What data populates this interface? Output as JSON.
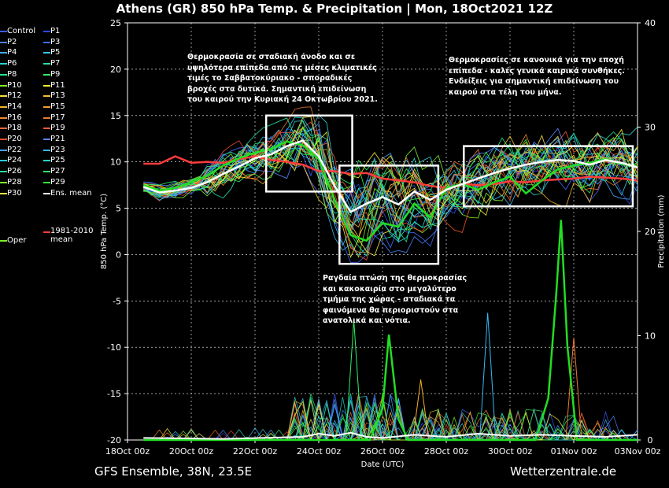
{
  "colors": {
    "background": "#000000",
    "foreground": "#ffffff",
    "grid": "#ffffff"
  },
  "title": "Athens  (GR)  850 hPa Temp. & Precipitation | Mon, 18Oct2021 12Z",
  "footer_left": "GFS Ensemble, 38N, 23.5E",
  "footer_right": "Wetterzentrale.de",
  "legend": [
    {
      "label": "Control",
      "color": "#3d5cff"
    },
    {
      "label": "P1",
      "color": "#2d48e8"
    },
    {
      "label": "P2",
      "color": "#4b82ff"
    },
    {
      "label": "P3",
      "color": "#3f6cff"
    },
    {
      "label": "P4",
      "color": "#43a9ff"
    },
    {
      "label": "P5",
      "color": "#32c6e6"
    },
    {
      "label": "P6",
      "color": "#2bd3d3"
    },
    {
      "label": "P7",
      "color": "#22e0b0"
    },
    {
      "label": "P8",
      "color": "#1ee890"
    },
    {
      "label": "P9",
      "color": "#2ef060"
    },
    {
      "label": "P10",
      "color": "#7cf020"
    },
    {
      "label": "P11",
      "color": "#f3f02c"
    },
    {
      "label": "P12",
      "color": "#f7dc3c"
    },
    {
      "label": "P13",
      "color": "#f4c22c"
    },
    {
      "label": "P14",
      "color": "#f6b027"
    },
    {
      "label": "P15",
      "color": "#f3a02a"
    },
    {
      "label": "P16",
      "color": "#f08a2e"
    },
    {
      "label": "P17",
      "color": "#ef7a30"
    },
    {
      "label": "P18",
      "color": "#f06a30"
    },
    {
      "label": "P19",
      "color": "#f05a30"
    },
    {
      "label": "P20",
      "color": "#f04a34"
    },
    {
      "label": "P21",
      "color": "#5a82ff"
    },
    {
      "label": "P22",
      "color": "#4aa0ff"
    },
    {
      "label": "P23",
      "color": "#36b8f4"
    },
    {
      "label": "P24",
      "color": "#2ccce0"
    },
    {
      "label": "P25",
      "color": "#22d8c4"
    },
    {
      "label": "P26",
      "color": "#22e0a0"
    },
    {
      "label": "P27",
      "color": "#34e870"
    },
    {
      "label": "P28",
      "color": "#7cf02c"
    },
    {
      "label": "P29",
      "color": "#2ef03a"
    },
    {
      "label": "P30",
      "color": "#f4f040"
    },
    {
      "label": "Ens. mean",
      "color": "#ffffff"
    },
    {
      "label": "Oper",
      "color": "#7cf020"
    },
    {
      "label": "1981-2010\nmean",
      "color": "#ff3b3b"
    }
  ],
  "annotations": [
    {
      "text": "Θερμοκρασία σε σταδιακή άνοδο και σε\nυψηλότερα επίπεδα από τις μέσες κλιματικές\nτιμές το Σαββατοκύριακο - σποραδικές\nβροχές στα δυτικά. Σημαντική επιδείνωση\nτου καιρού την Κυριακή 24 Οκτωβρίου 2021."
    },
    {
      "text": "Θερμοκρασίες σε κανονικά για την εποχή\nεπίπεδα - καλές γενικά καιρικά συνθήκες.\nΕνδείξεις για σημαντική επιδείνωση του\nκαιρού στα τέλη του μήνα."
    },
    {
      "text": "Ραγδαία πτώση της θερμοκρασίας\nκαι κακοκαιρία στο μεγαλύτερο\nτμήμα της χώρας - σταδιακά τα\nφαινόμενα θα περιοριστούν στα\nανατολικά και νότια."
    }
  ],
  "chart_data": {
    "type": "line",
    "x_tick_labels": [
      "18Oct 00z",
      "20Oct 00z",
      "22Oct 00z",
      "24Oct 00z",
      "26Oct 00z",
      "28Oct 00z",
      "30Oct 00z",
      "01Nov 00z",
      "03Nov 00z"
    ],
    "y_ticks_left": [
      "25",
      "20",
      "15",
      "10",
      "5",
      "0",
      "-5",
      "-10",
      "-15",
      "-20"
    ],
    "y_ticks_right": [
      "40",
      "30",
      "20",
      "10",
      "0"
    ],
    "xlabel": "Date (UTC)",
    "ylabel": "850 hPa Temp. (°C)",
    "y2label": "Precipitation (mm)",
    "ylim": [
      -20,
      25
    ],
    "y2lim": [
      0,
      40
    ],
    "x_unit": "days since 18Oct 00z",
    "xlim": [
      0,
      16
    ],
    "series_key": [
      {
        "name": "Ens. mean",
        "x": [
          0.5,
          1,
          1.5,
          2,
          2.5,
          3,
          3.5,
          4,
          4.5,
          5,
          5.5,
          6,
          6.5,
          7,
          7.5,
          8,
          8.5,
          9,
          9.5,
          10,
          10.5,
          11,
          11.5,
          12,
          12.5,
          13,
          13.5,
          14,
          14.5,
          15,
          15.5,
          16
        ],
        "y": [
          7.3,
          6.7,
          6.9,
          7.2,
          7.8,
          8.7,
          9.5,
          10.4,
          10.8,
          11.7,
          12.3,
          10.6,
          7.4,
          4.6,
          5.5,
          6.2,
          5.4,
          6.8,
          5.9,
          7.0,
          7.6,
          8.2,
          8.8,
          9.3,
          9.7,
          10.0,
          10.2,
          10.1,
          9.7,
          10.2,
          9.9,
          9.4
        ]
      },
      {
        "name": "1981-2010 mean",
        "x": [
          0.5,
          1,
          1.5,
          2,
          2.5,
          3,
          3.5,
          4,
          4.5,
          5,
          5.5,
          6,
          6.5,
          7,
          7.5,
          8,
          8.5,
          9,
          9.5,
          10,
          10.5,
          11,
          11.5,
          12,
          12.5,
          13,
          13.5,
          14,
          14.5,
          15,
          15.5,
          16
        ],
        "y": [
          9.8,
          9.8,
          10.6,
          9.9,
          10.0,
          9.9,
          10.3,
          10.6,
          10.2,
          10.0,
          9.7,
          9.0,
          9.0,
          8.7,
          8.8,
          8.2,
          8.0,
          7.8,
          7.4,
          7.2,
          7.6,
          7.5,
          7.6,
          7.9,
          7.8,
          8.0,
          8.1,
          8.2,
          8.4,
          8.3,
          8.2,
          8.0
        ]
      },
      {
        "name": "Oper",
        "x": [
          0.5,
          1,
          1.5,
          2,
          2.5,
          3,
          3.5,
          4,
          4.5,
          5,
          5.5,
          6,
          6.5,
          7,
          7.5,
          8,
          8.5,
          9,
          9.5,
          10,
          10.5,
          11,
          11.5,
          12,
          12.5,
          13,
          13.5,
          14,
          14.5,
          15,
          15.5,
          16
        ],
        "y": [
          7.5,
          6.9,
          7.2,
          7.8,
          8.5,
          9.6,
          10.4,
          11.0,
          11.4,
          12.2,
          11.8,
          10.3,
          5.9,
          2.1,
          1.5,
          3.4,
          3.0,
          5.5,
          4.0,
          7.2,
          7.6,
          7.0,
          7.8,
          8.4,
          6.6,
          8.0,
          9.2,
          9.6,
          9.9,
          10.3,
          9.8,
          9.5
        ]
      }
    ],
    "precipitation_peaks_mm": [
      {
        "series": "Oper",
        "x": 8.2,
        "y": 10.1
      },
      {
        "series": "Oper",
        "x": 13.6,
        "y": 21.1
      },
      {
        "series": "P-member",
        "x": 7.1,
        "y": 11.5
      },
      {
        "series": "P-member",
        "x": 11.3,
        "y": 12.2
      }
    ],
    "grid": true,
    "legend_position": "left"
  }
}
